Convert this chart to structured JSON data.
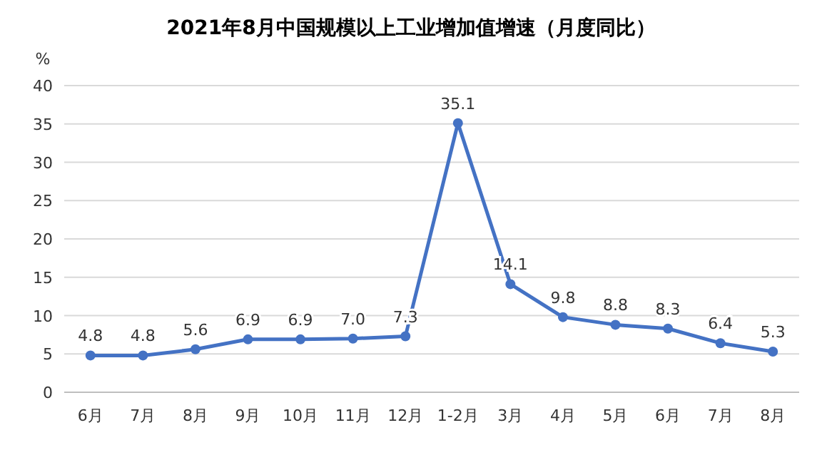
{
  "chart_data": {
    "type": "line",
    "title": "2021年8月中国规模以上工业增加值增速（月度同比）",
    "ylabel": "%",
    "categories": [
      "6月",
      "7月",
      "8月",
      "9月",
      "10月",
      "11月",
      "12月",
      "1-2月",
      "3月",
      "4月",
      "5月",
      "6月",
      "7月",
      "8月"
    ],
    "values": [
      4.8,
      4.8,
      5.6,
      6.9,
      6.9,
      7.0,
      7.3,
      35.1,
      14.1,
      9.8,
      8.8,
      8.3,
      6.4,
      5.3
    ],
    "value_labels": [
      "4.8",
      "4.8",
      "5.6",
      "6.9",
      "6.9",
      "7.0",
      "7.3",
      "35.1",
      "14.1",
      "9.8",
      "8.8",
      "8.3",
      "6.4",
      "5.3"
    ],
    "color": "#4472c4",
    "ylim": [
      0,
      40
    ],
    "yticks": [
      0,
      5,
      10,
      15,
      20,
      25,
      30,
      35,
      40
    ],
    "grid": "y",
    "marker": "circle",
    "line_style": "solid"
  }
}
